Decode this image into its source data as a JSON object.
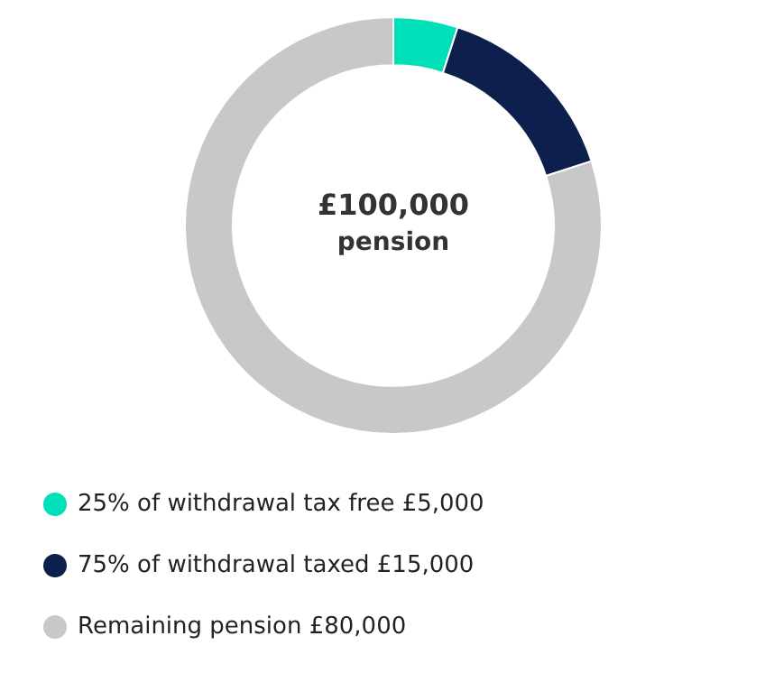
{
  "chart_data": {
    "type": "donut",
    "title": "£100,000",
    "subtitle": "pension",
    "categories": [
      "25% of withdrawal tax free £5,000",
      "75% of withdrawal taxed £15,000",
      "Remaining pension £80,000"
    ],
    "values": [
      5000,
      15000,
      80000
    ],
    "colors": [
      "#00e0b8",
      "#0d1f4d",
      "#c8c8c8"
    ],
    "legend": "bottom"
  }
}
